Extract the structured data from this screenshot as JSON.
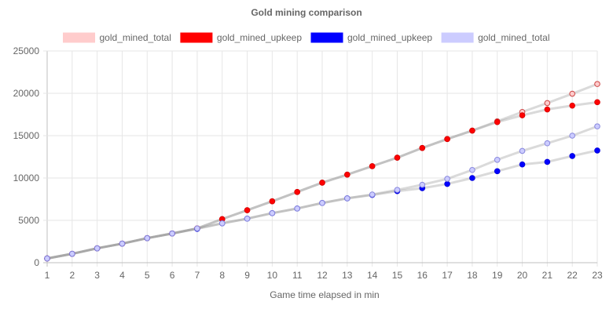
{
  "chart_data": {
    "type": "line",
    "title": "Gold mining comparison",
    "xlabel": "Game time elapsed in min",
    "ylabel": "",
    "x": [
      1,
      2,
      3,
      4,
      5,
      6,
      7,
      8,
      9,
      10,
      11,
      12,
      13,
      14,
      15,
      16,
      17,
      18,
      19,
      20,
      21,
      22,
      23
    ],
    "xlim": [
      1,
      23
    ],
    "ylim": [
      0,
      25000
    ],
    "yticks": [
      0,
      5000,
      10000,
      15000,
      20000,
      25000
    ],
    "grid": true,
    "legend_position": "top",
    "series": [
      {
        "name": "gold_mined_total",
        "color": "#ffcccc",
        "point_border": "#cc4444",
        "values": [
          500,
          1050,
          1700,
          2250,
          2900,
          3450,
          4050,
          5150,
          6200,
          7250,
          8350,
          9450,
          10400,
          11400,
          12400,
          13550,
          14600,
          15600,
          16700,
          17800,
          18850,
          19950,
          21100
        ]
      },
      {
        "name": "gold_mined_upkeep",
        "color": "#ff0000",
        "point_border": "#dd0000",
        "values": [
          500,
          1050,
          1700,
          2250,
          2900,
          3450,
          4050,
          5150,
          6200,
          7250,
          8350,
          9450,
          10400,
          11400,
          12400,
          13550,
          14600,
          15600,
          16600,
          17400,
          18100,
          18550,
          18950
        ]
      },
      {
        "name": "gold_mined_upkeep",
        "color": "#0000ff",
        "point_border": "#0000dd",
        "values": [
          500,
          1050,
          1700,
          2250,
          2900,
          3450,
          4000,
          4650,
          5200,
          5850,
          6400,
          7050,
          7600,
          8000,
          8450,
          8800,
          9300,
          10000,
          10800,
          11600,
          11900,
          12600,
          13250
        ]
      },
      {
        "name": "gold_mined_total",
        "color": "#ccccff",
        "point_border": "#8888dd",
        "values": [
          500,
          1050,
          1700,
          2250,
          2900,
          3450,
          4050,
          4650,
          5200,
          5850,
          6400,
          7050,
          7600,
          8050,
          8600,
          9200,
          9900,
          10950,
          12150,
          13200,
          14100,
          15000,
          16100
        ]
      }
    ]
  }
}
